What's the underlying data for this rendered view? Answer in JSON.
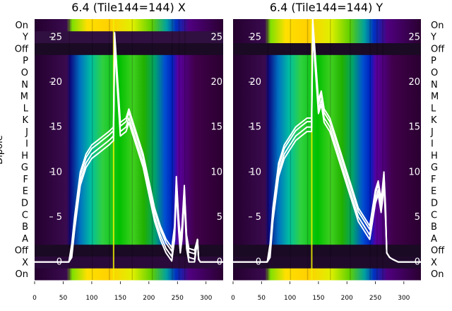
{
  "chart_data": [
    {
      "type": "heatmap",
      "title": "6.4 (Tile144=144) X",
      "ylabel": "Dipole",
      "y_categories": [
        "On",
        "X",
        "Off",
        "A",
        "B",
        "C",
        "D",
        "E",
        "F",
        "G",
        "H",
        "I",
        "J",
        "K",
        "L",
        "M",
        "N",
        "O",
        "P",
        "Off",
        "Y",
        "On"
      ],
      "x_ticks": [
        0,
        50,
        100,
        150,
        200,
        250,
        300
      ],
      "xlim": [
        0,
        330
      ],
      "overlay_ylim": [
        -2,
        27
      ],
      "overlay_yticks": [
        0,
        5,
        10,
        15,
        20,
        25
      ],
      "overlay_color": "#ffffff",
      "spectrum_profile": {
        "x": [
          0,
          60,
          65,
          70,
          80,
          90,
          100,
          110,
          120,
          130,
          138,
          140,
          150,
          160,
          165,
          170,
          180,
          190,
          200,
          210,
          220,
          230,
          240,
          245,
          248,
          252,
          255,
          258,
          262,
          266,
          270,
          280,
          285,
          287,
          290,
          300,
          320,
          330
        ],
        "y": [
          0,
          0,
          1,
          4,
          9,
          11,
          12,
          12.5,
          13,
          13.5,
          14,
          24.5,
          14.5,
          15,
          16,
          15,
          13,
          11,
          8,
          5,
          3,
          1.5,
          0.6,
          3,
          8.5,
          4,
          1.5,
          3,
          7.5,
          2,
          0.5,
          0.3,
          2.5,
          0.3,
          0,
          0,
          0,
          0
        ]
      }
    },
    {
      "type": "heatmap",
      "title": "6.4 (Tile144=144) Y",
      "y_categories": [
        "On",
        "X",
        "Off",
        "A",
        "B",
        "C",
        "D",
        "E",
        "F",
        "G",
        "H",
        "I",
        "J",
        "K",
        "L",
        "M",
        "N",
        "O",
        "P",
        "Off",
        "Y",
        "On"
      ],
      "x_ticks": [
        0,
        50,
        100,
        150,
        200,
        250,
        300
      ],
      "xlim": [
        0,
        330
      ],
      "overlay_ylim": [
        -2,
        27
      ],
      "overlay_yticks": [
        0,
        5,
        10,
        15,
        20,
        25
      ],
      "overlay_color": "#ffffff",
      "spectrum_profile": {
        "x": [
          0,
          60,
          65,
          70,
          80,
          90,
          100,
          110,
          120,
          130,
          138,
          140,
          150,
          155,
          160,
          170,
          180,
          190,
          200,
          210,
          220,
          230,
          240,
          250,
          255,
          260,
          262,
          265,
          268,
          270,
          275,
          280,
          290,
          300,
          330
        ],
        "y": [
          0,
          0,
          1,
          5,
          10,
          12,
          13,
          14,
          14.5,
          15,
          15,
          26,
          17,
          18,
          16,
          15,
          13,
          11,
          9,
          7,
          5,
          4,
          3,
          7,
          8,
          6,
          7,
          9,
          5,
          1,
          0.5,
          0.3,
          0,
          0,
          0
        ]
      }
    }
  ]
}
